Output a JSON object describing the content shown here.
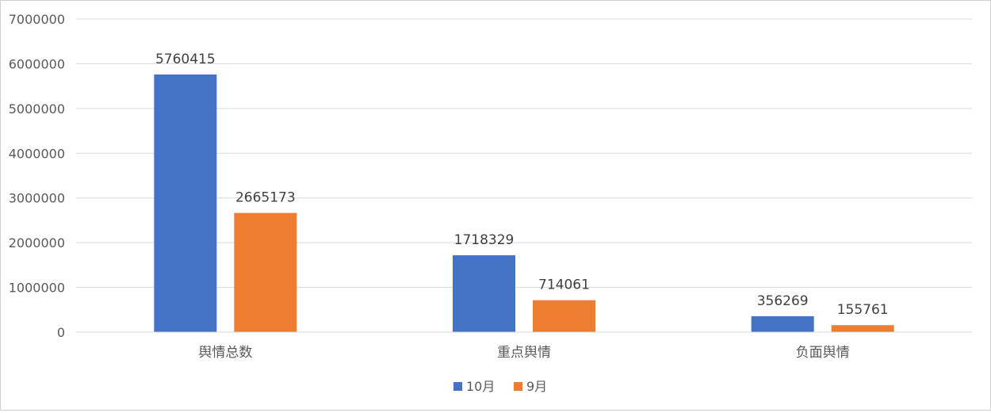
{
  "chart_data": {
    "type": "bar",
    "title": "",
    "xlabel": "",
    "ylabel": "",
    "categories": [
      "舆情总数",
      "重点舆情",
      "负面舆情"
    ],
    "series": [
      {
        "name": "10月",
        "color": "#4472C4",
        "values": [
          5760415,
          1718329,
          356269
        ]
      },
      {
        "name": "9月",
        "color": "#ED7D31",
        "values": [
          2665173,
          714061,
          155761
        ]
      }
    ],
    "ylim": [
      0,
      7000000
    ],
    "yticks": [
      0,
      1000000,
      2000000,
      3000000,
      4000000,
      5000000,
      6000000,
      7000000
    ],
    "grid": true,
    "legend_position": "bottom"
  }
}
